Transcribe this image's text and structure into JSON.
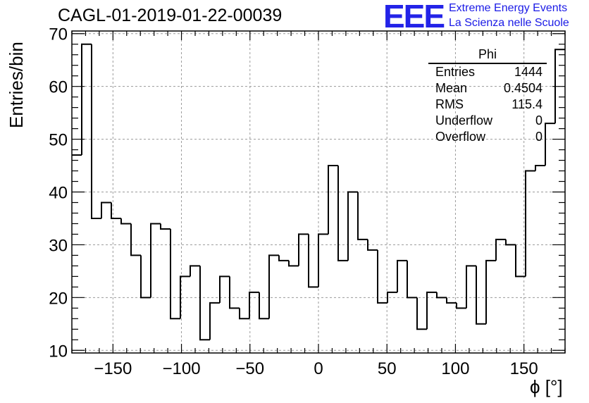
{
  "chart_data": {
    "type": "histogram",
    "title": "CAGL-01-2019-01-22-00039",
    "xlabel": "ϕ [°]",
    "ylabel": "Entries/bin",
    "xlim": [
      -180,
      180
    ],
    "ylim": [
      9.5,
      70.5
    ],
    "bin_width": 7.2,
    "x_ticks": [
      -150,
      -100,
      -50,
      0,
      50,
      100,
      150
    ],
    "y_ticks": [
      10,
      20,
      30,
      40,
      50,
      60,
      70
    ],
    "grid": true,
    "bins_low_edge": [
      -180,
      -172.8,
      -165.6,
      -158.4,
      -151.2,
      -144,
      -136.8,
      -129.6,
      -122.4,
      -115.2,
      -108,
      -100.8,
      -93.6,
      -86.4,
      -79.2,
      -72,
      -64.8,
      -57.6,
      -50.4,
      -43.2,
      -36,
      -28.8,
      -21.6,
      -14.4,
      -7.2,
      0,
      7.2,
      14.4,
      21.6,
      28.8,
      36,
      43.2,
      50.4,
      57.6,
      64.8,
      72,
      79.2,
      86.4,
      93.6,
      100.8,
      108,
      115.2,
      122.4,
      129.6,
      136.8,
      144,
      151.2,
      158.4,
      165.6,
      172.8
    ],
    "values": [
      47,
      68,
      35,
      38,
      35,
      34,
      28,
      20,
      34,
      33,
      16,
      24,
      26,
      12,
      19,
      24,
      18,
      16,
      21,
      16,
      28,
      27,
      26,
      32,
      22,
      32,
      45,
      27,
      40,
      31,
      29,
      19,
      21,
      27,
      20,
      14,
      21,
      20,
      19,
      18,
      26,
      15,
      27,
      31,
      30,
      24,
      44,
      45,
      53,
      67
    ],
    "stats": {
      "name": "Phi",
      "rows": [
        {
          "label": "Entries",
          "value": "1444"
        },
        {
          "label": "Mean",
          "value": "0.4504"
        },
        {
          "label": "RMS",
          "value": "115.4"
        },
        {
          "label": "Underflow",
          "value": "0"
        },
        {
          "label": "Overflow",
          "value": "0"
        }
      ]
    },
    "line_color": "#000000",
    "grid_color": "#9a9a9a"
  },
  "logo": {
    "mark": "EEE",
    "line1": "Extreme Energy Events",
    "line2": "La Scienza nelle Scuole",
    "color": "#2323e8"
  }
}
